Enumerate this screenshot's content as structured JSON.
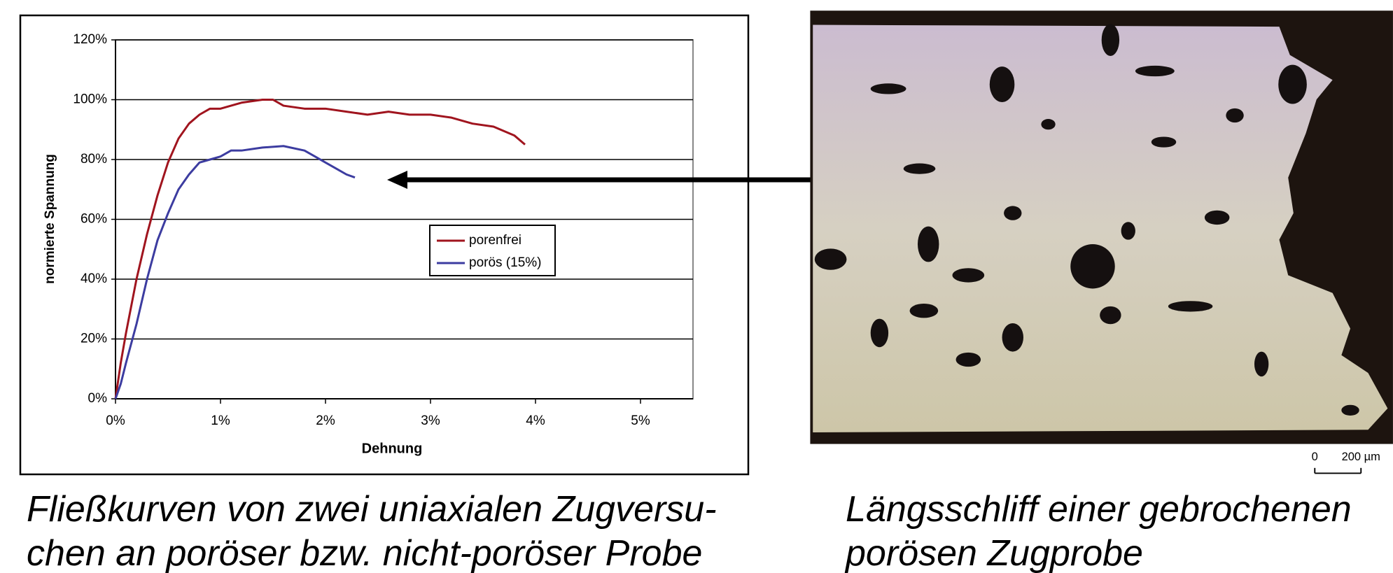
{
  "chart_data": {
    "type": "line",
    "xlabel": "Dehnung",
    "ylabel": "normierte Spannung",
    "xlim": [
      0,
      5.5
    ],
    "ylim": [
      0,
      120
    ],
    "xticks": [
      {
        "value": 0,
        "label": "0%"
      },
      {
        "value": 1,
        "label": "1%"
      },
      {
        "value": 2,
        "label": "2%"
      },
      {
        "value": 3,
        "label": "3%"
      },
      {
        "value": 4,
        "label": "4%"
      },
      {
        "value": 5,
        "label": "5%"
      }
    ],
    "yticks": [
      {
        "value": 0,
        "label": "0%"
      },
      {
        "value": 20,
        "label": "20%"
      },
      {
        "value": 40,
        "label": "40%"
      },
      {
        "value": 60,
        "label": "60%"
      },
      {
        "value": 80,
        "label": "80%"
      },
      {
        "value": 100,
        "label": "100%"
      },
      {
        "value": 120,
        "label": "120%"
      }
    ],
    "grid": true,
    "series": [
      {
        "name": "porenfrei",
        "color": "#a0141e",
        "x": [
          0,
          0.05,
          0.1,
          0.2,
          0.3,
          0.4,
          0.5,
          0.6,
          0.7,
          0.8,
          0.9,
          1.0,
          1.1,
          1.2,
          1.3,
          1.4,
          1.5,
          1.6,
          1.8,
          2.0,
          2.2,
          2.4,
          2.6,
          2.8,
          3.0,
          3.2,
          3.4,
          3.6,
          3.8,
          3.9
        ],
        "values": [
          0,
          12,
          22,
          40,
          55,
          68,
          79,
          87,
          92,
          95,
          97,
          97,
          98,
          99,
          99.5,
          100,
          100,
          98,
          97,
          97,
          96,
          95,
          96,
          95,
          95,
          94,
          92,
          91,
          88,
          85
        ]
      },
      {
        "name": "porös (15%)",
        "color": "#3c3ca0",
        "x": [
          0,
          0.05,
          0.1,
          0.2,
          0.3,
          0.4,
          0.5,
          0.6,
          0.7,
          0.8,
          0.9,
          1.0,
          1.1,
          1.2,
          1.4,
          1.6,
          1.8,
          1.9,
          2.0,
          2.1,
          2.2,
          2.28
        ],
        "values": [
          0,
          5,
          12,
          25,
          40,
          53,
          62,
          70,
          75,
          79,
          80,
          81,
          83,
          83,
          84,
          84.5,
          83,
          81,
          79,
          77,
          75,
          74
        ]
      }
    ]
  },
  "image": {
    "scale_bar": [
      "0",
      "200 µm"
    ]
  },
  "captions": {
    "left": [
      "Fließkurven von zwei uniaxialen Zugversu-",
      "chen an poröser bzw. nicht-poröser Probe"
    ],
    "right": [
      "Längsschliff einer gebrochenen",
      "porösen Zugprobe"
    ]
  }
}
